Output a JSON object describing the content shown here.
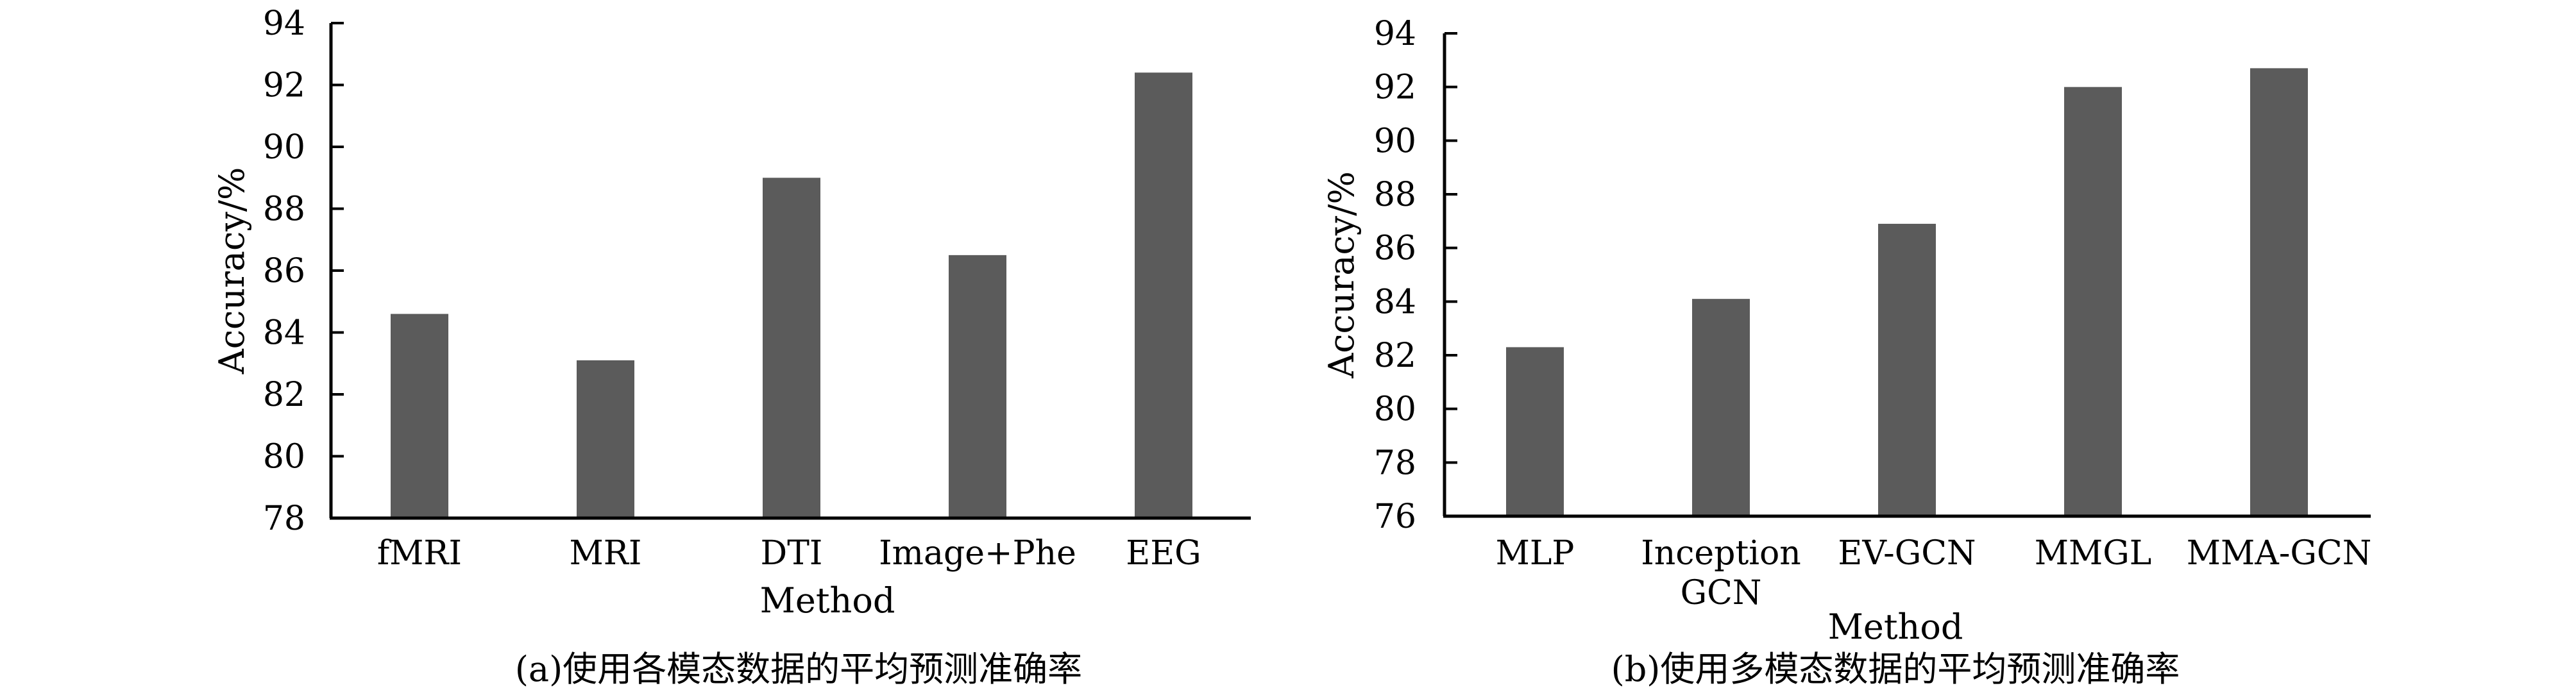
{
  "chart_data": [
    {
      "type": "bar",
      "caption": "(a)使用各模态数据的平均预测准确率",
      "xlabel": "Method",
      "ylabel": "Accuracy/%",
      "categories": [
        [
          "fMRI"
        ],
        [
          "MRI"
        ],
        [
          "DTI"
        ],
        [
          "Image+Phe"
        ],
        [
          "EEG"
        ]
      ],
      "values": [
        84.6,
        83.1,
        89.0,
        86.5,
        92.4
      ],
      "ylim": [
        78,
        94
      ],
      "yticks": [
        78,
        80,
        82,
        84,
        86,
        88,
        90,
        92,
        94
      ],
      "bar_color": "#5b5b5b",
      "grid": false,
      "legend": "none"
    },
    {
      "type": "bar",
      "caption": "(b)使用多模态数据的平均预测准确率",
      "xlabel": "Method",
      "ylabel": "Accuracy/%",
      "categories": [
        [
          "MLP"
        ],
        [
          "Inception",
          "GCN"
        ],
        [
          "EV-GCN"
        ],
        [
          "MMGL"
        ],
        [
          "MMA-GCN"
        ]
      ],
      "values": [
        82.3,
        84.1,
        86.9,
        92.0,
        92.7
      ],
      "ylim": [
        76,
        94
      ],
      "yticks": [
        76,
        78,
        80,
        82,
        84,
        86,
        88,
        90,
        92,
        94
      ],
      "bar_color": "#5b5b5b",
      "grid": false,
      "legend": "none"
    }
  ]
}
